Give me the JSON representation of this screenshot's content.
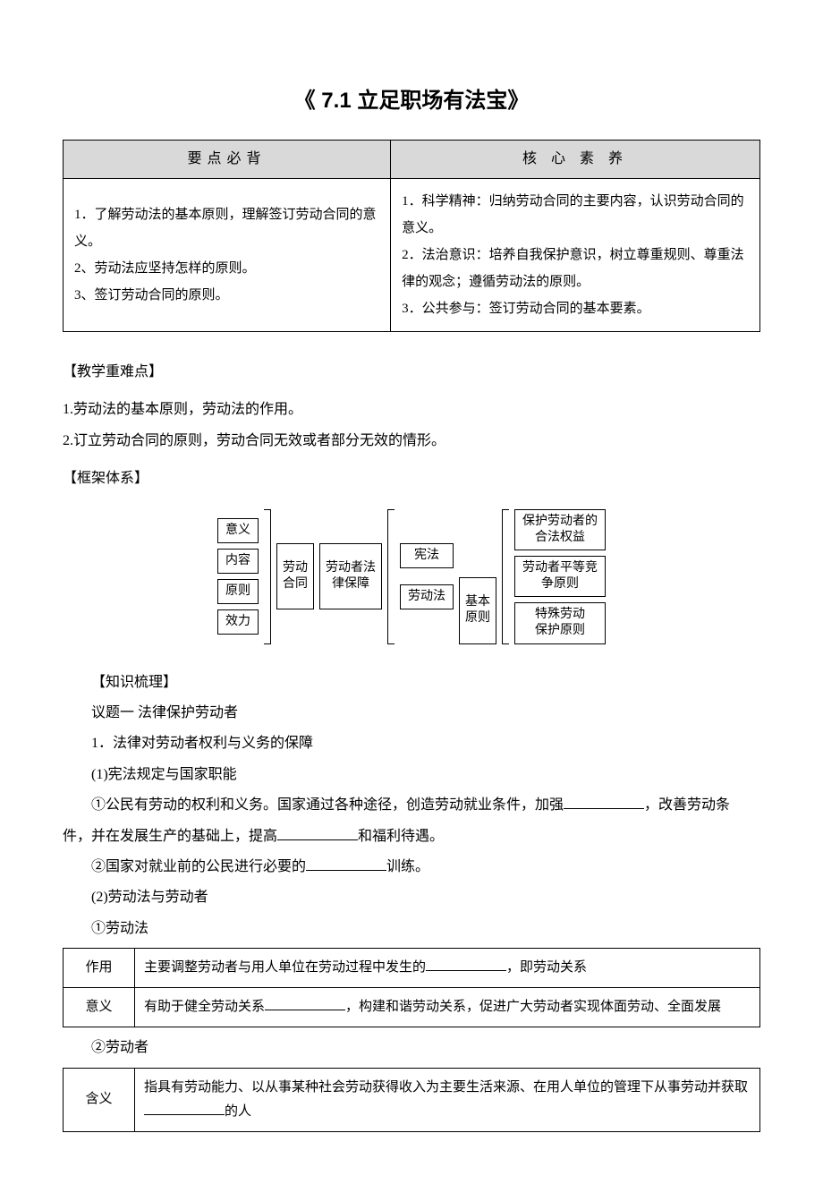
{
  "title": "《 7.1 立足职场有法宝》",
  "table1": {
    "headers": [
      "要点必背",
      "核 心 素 养"
    ],
    "left": "1．了解劳动法的基本原则，理解签订劳动合同的意义。\n2、劳动法应坚持怎样的原则。\n3、签订劳动合同的原则。",
    "right": "1．科学精神：归纳劳动合同的主要内容，认识劳动合同的意义。\n2．法治意识：培养自我保护意识，树立尊重规则、尊重法律的观念；遵循劳动法的原则。\n3．公共参与：签订劳动合同的基本要素。"
  },
  "sec_difficult_label": "【教学重难点】",
  "difficult_1": "1.劳动法的基本原则，劳动法的作用。",
  "difficult_2": "2.订立劳动合同的原则，劳动合同无效或者部分无效的情形。",
  "sec_frame_label": "【框架体系】",
  "diagram": {
    "col1": [
      "意义",
      "内容",
      "原则",
      "效力"
    ],
    "mid1": "劳动\n合同",
    "mid2": "劳动者法\n律保障",
    "right_top": "宪法",
    "right_bot": "劳动法",
    "basic": "基本\n原则",
    "principles": [
      "保护劳动者的\n合法权益",
      "劳动者平等竞\n争原则",
      "特殊劳动\n保护原则"
    ]
  },
  "sec_knowledge_label": "【知识梳理】",
  "topic_1": "议题一  法律保护劳动者",
  "point_1": "1．法律对劳动者权利与义务的保障",
  "sub_1_1": "(1)宪法规定与国家职能",
  "line_1_1a_pre": "①公民有劳动的权利和义务。国家通过各种途径，创造劳动就业条件，加强",
  "line_1_1a_post": "，改善劳动条",
  "line_1_1b_pre": "件，并在发展生产的基础上，提高",
  "line_1_1b_post": "和福利待遇。",
  "line_1_2_pre": "②国家对就业前的公民进行必要的",
  "line_1_2_post": "训练。",
  "sub_1_2": "(2)劳动法与劳动者",
  "sub_1_2_a": "①劳动法",
  "table2": {
    "rows": [
      {
        "label": "作用",
        "pre": "主要调整劳动者与用人单位在劳动过程中发生的",
        "post": "，即劳动关系"
      },
      {
        "label": "意义",
        "pre": "有助于健全劳动关系",
        "post": "，构建和谐劳动关系，促进广大劳动者实现体面劳动、全面发展"
      }
    ]
  },
  "sub_1_2_b": "②劳动者",
  "table3": {
    "label": "含义",
    "pre": "指具有劳动能力、以从事某种社会劳动获得收入为主要生活来源、在用人单位的管理下从事劳动并获取",
    "post": "的人"
  },
  "colors": {
    "header_bg": "#d9d9d9",
    "border": "#000000",
    "text": "#000000",
    "background": "#ffffff"
  }
}
